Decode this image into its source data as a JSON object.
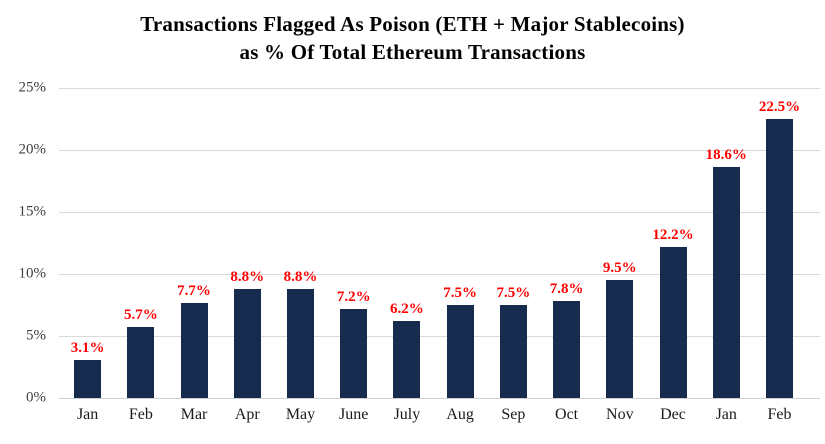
{
  "chart_data": {
    "type": "bar",
    "title": "Transactions Flagged As Poison (ETH + Major Stablecoins) as % Of Total Ethereum Transactions",
    "title_line1": "Transactions Flagged As Poison (ETH + Major Stablecoins)",
    "title_line2": "as % Of Total Ethereum Transactions",
    "categories": [
      "Jan",
      "Feb",
      "Mar",
      "Apr",
      "May",
      "June",
      "July",
      "Aug",
      "Sep",
      "Oct",
      "Nov",
      "Dec",
      "Jan",
      "Feb"
    ],
    "values": [
      3.1,
      5.7,
      7.7,
      8.8,
      8.8,
      7.2,
      6.2,
      7.5,
      7.5,
      7.8,
      9.5,
      12.2,
      18.6,
      22.5
    ],
    "value_labels": [
      "3.1%",
      "5.7%",
      "7.7%",
      "8.8%",
      "8.8%",
      "7.2%",
      "6.2%",
      "7.5%",
      "7.5%",
      "7.8%",
      "9.5%",
      "12.2%",
      "18.6%",
      "22.5%"
    ],
    "xlabel": "",
    "ylabel": "",
    "ylim": [
      0,
      25
    ],
    "yticks": [
      0,
      5,
      10,
      15,
      20,
      25
    ],
    "ytick_labels": [
      "0%",
      "5%",
      "10%",
      "15%",
      "20%",
      "25%"
    ],
    "grid": true,
    "legend": false,
    "colors": {
      "bar": "#162B4D",
      "value_label": "#FF0000",
      "gridline": "#D9D9D9",
      "axis_text": "#404040",
      "title_text": "#000000"
    }
  }
}
